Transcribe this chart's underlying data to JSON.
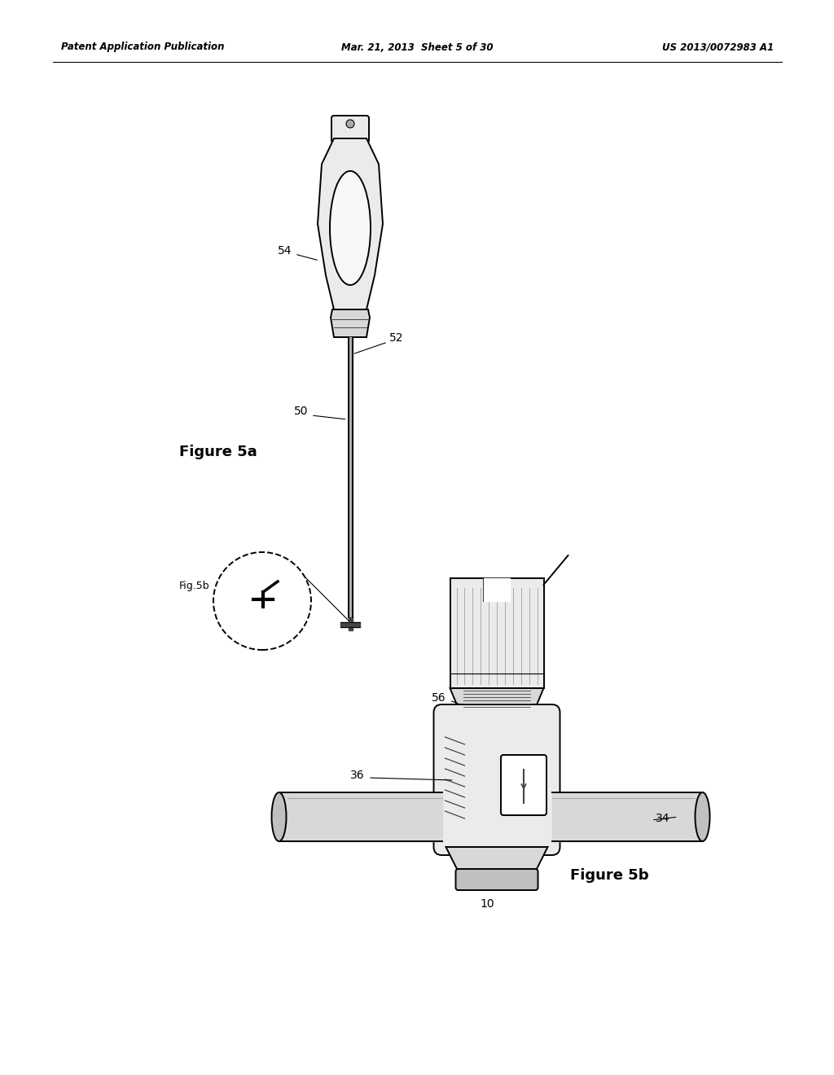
{
  "bg_color": "#ffffff",
  "black": "#000000",
  "dgray": "#444444",
  "gray": "#888888",
  "lgray": "#cccccc",
  "fill_light": "#ebebeb",
  "fill_mid": "#d8d8d8",
  "fill_dark": "#c0c0c0",
  "header_left": "Patent Application Publication",
  "header_center": "Mar. 21, 2013  Sheet 5 of 30",
  "header_right": "US 2013/0072983 A1",
  "fig5a_label": "Figure 5a",
  "fig5b_label": "Figure 5b",
  "fig5b_circle_label": "Fig.5b",
  "ref_54": "54",
  "ref_52": "52",
  "ref_50": "50",
  "ref_56": "56",
  "ref_36": "36",
  "ref_34": "34",
  "ref_10": "10",
  "lw": 1.4
}
